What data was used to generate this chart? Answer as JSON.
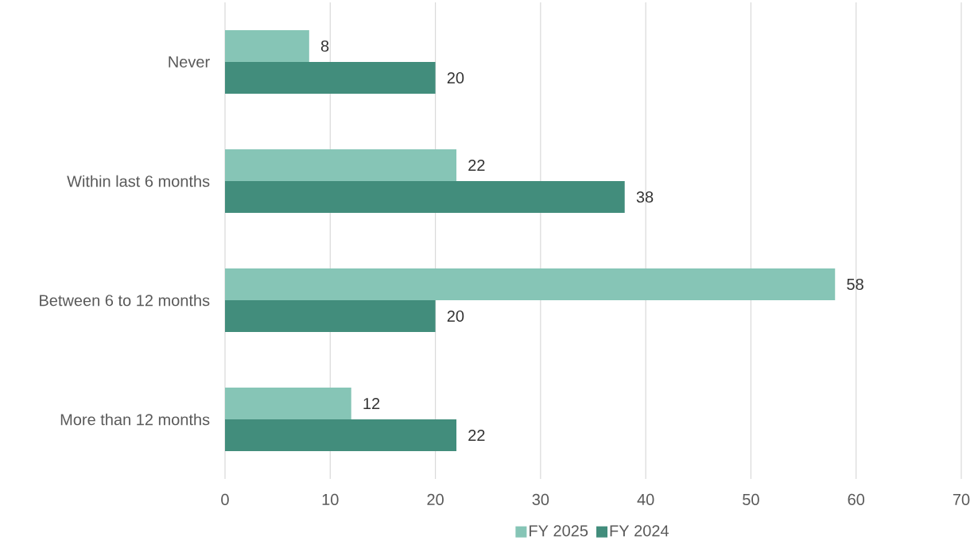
{
  "chart_data": {
    "type": "bar",
    "orientation": "horizontal",
    "categories": [
      "Never",
      "Within last 6 months",
      "Between 6 to 12 months",
      "More than 12 months"
    ],
    "series": [
      {
        "name": "FY 2025",
        "color": "#86c5b6",
        "values": [
          8,
          22,
          58,
          12
        ]
      },
      {
        "name": "FY 2024",
        "color": "#428d7c",
        "values": [
          20,
          38,
          20,
          22
        ]
      }
    ],
    "xlim": [
      0,
      70
    ],
    "xticks": [
      0,
      10,
      20,
      30,
      40,
      50,
      60,
      70
    ],
    "grid": "x",
    "legend": "bottom",
    "data_labels": true
  }
}
